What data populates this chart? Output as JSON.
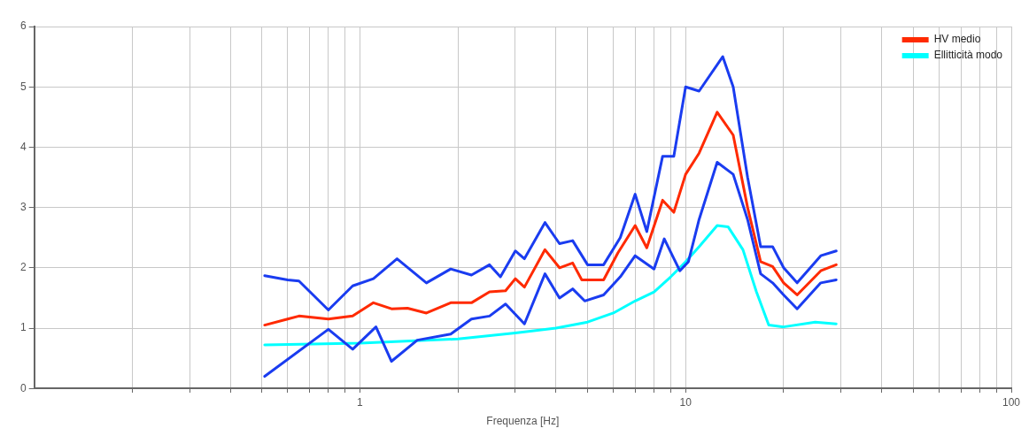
{
  "chart_data": {
    "type": "line",
    "xlabel": "Frequenza [Hz]",
    "xlim": [
      0.1,
      100
    ],
    "ylim": [
      0,
      6
    ],
    "xticks": [
      {
        "value": 0.2,
        "label": null
      },
      {
        "value": 0.3,
        "label": null
      },
      {
        "value": 0.4,
        "label": null
      },
      {
        "value": 0.5,
        "label": null
      },
      {
        "value": 0.6,
        "label": null
      },
      {
        "value": 0.7,
        "label": null
      },
      {
        "value": 0.8,
        "label": null
      },
      {
        "value": 0.9,
        "label": null
      },
      1,
      {
        "value": 2,
        "label": null
      },
      {
        "value": 3,
        "label": null
      },
      {
        "value": 4,
        "label": null
      },
      {
        "value": 5,
        "label": null
      },
      {
        "value": 6,
        "label": null
      },
      {
        "value": 7,
        "label": null
      },
      {
        "value": 8,
        "label": null
      },
      {
        "value": 9,
        "label": null
      },
      10,
      {
        "value": 20,
        "label": null
      },
      {
        "value": 30,
        "label": null
      },
      {
        "value": 40,
        "label": null
      },
      {
        "value": 50,
        "label": null
      },
      {
        "value": 60,
        "label": null
      },
      {
        "value": 70,
        "label": null
      },
      {
        "value": 80,
        "label": null
      },
      {
        "value": 90,
        "label": null
      },
      100
    ],
    "yticks": [
      0,
      1,
      2,
      3,
      4,
      5,
      6
    ],
    "log": "x",
    "grid": true,
    "legend": "top right",
    "marker": "none",
    "line_style": "solid",
    "series": [
      {
        "color": "#1a3cf0",
        "x": [
          0.51,
          0.6,
          0.65,
          0.8,
          0.95,
          1.1,
          1.3,
          1.6,
          1.9,
          2.2,
          2.5,
          2.7,
          3.0,
          3.2,
          3.7,
          4.1,
          4.5,
          5.0,
          5.6,
          6.3,
          7.0,
          7.6,
          8.5,
          9.2,
          10,
          11,
          13,
          14,
          15.5,
          17,
          18.5,
          20,
          22,
          26,
          29
        ],
        "values": [
          1.87,
          1.8,
          1.78,
          1.3,
          1.7,
          1.82,
          2.15,
          1.75,
          1.98,
          1.88,
          2.05,
          1.85,
          2.28,
          2.15,
          2.75,
          2.4,
          2.45,
          2.05,
          2.05,
          2.5,
          3.22,
          2.6,
          3.85,
          3.85,
          5.0,
          4.93,
          5.5,
          5.0,
          3.5,
          2.35,
          2.35,
          2.0,
          1.75,
          2.2,
          2.28
        ]
      },
      {
        "color": "#1a3cf0",
        "x": [
          0.51,
          0.8,
          0.95,
          1.12,
          1.25,
          1.5,
          1.9,
          2.2,
          2.5,
          2.8,
          3.2,
          3.7,
          4.1,
          4.5,
          4.9,
          5.6,
          6.3,
          7.0,
          8.0,
          8.6,
          9.6,
          10.2,
          11,
          12.5,
          14,
          15.5,
          17,
          18.5,
          20,
          22,
          26,
          29
        ],
        "values": [
          0.2,
          0.98,
          0.65,
          1.02,
          0.45,
          0.8,
          0.9,
          1.15,
          1.2,
          1.4,
          1.07,
          1.9,
          1.5,
          1.65,
          1.45,
          1.55,
          1.85,
          2.2,
          1.98,
          2.48,
          1.95,
          2.1,
          2.8,
          3.75,
          3.55,
          2.8,
          1.9,
          1.75,
          1.55,
          1.32,
          1.75,
          1.8
        ]
      },
      {
        "name": "HV medio",
        "color": "#ff2a00",
        "x": [
          0.51,
          0.6,
          0.65,
          0.8,
          0.95,
          1.1,
          1.25,
          1.4,
          1.6,
          1.9,
          2.2,
          2.5,
          2.8,
          3.0,
          3.2,
          3.7,
          4.1,
          4.5,
          4.8,
          5.6,
          6.2,
          7.0,
          7.6,
          8.5,
          9.2,
          10,
          11,
          12.5,
          14,
          15.5,
          17,
          18.5,
          20,
          22,
          26,
          29
        ],
        "values": [
          1.05,
          1.15,
          1.2,
          1.15,
          1.2,
          1.42,
          1.32,
          1.33,
          1.25,
          1.42,
          1.42,
          1.6,
          1.62,
          1.82,
          1.68,
          2.3,
          2.0,
          2.08,
          1.8,
          1.8,
          2.25,
          2.7,
          2.33,
          3.12,
          2.92,
          3.55,
          3.9,
          4.58,
          4.2,
          3.0,
          2.1,
          2.02,
          1.75,
          1.55,
          1.95,
          2.05
        ]
      },
      {
        "name": "Ellitticità modo",
        "color": "#00ffff",
        "x": [
          0.51,
          1,
          2,
          3,
          4,
          5,
          6,
          7,
          8,
          9,
          10,
          11,
          12.5,
          13.5,
          15,
          16.5,
          18,
          20,
          25,
          29
        ],
        "values": [
          0.72,
          0.75,
          0.82,
          0.92,
          1.0,
          1.1,
          1.25,
          1.45,
          1.6,
          1.85,
          2.1,
          2.35,
          2.7,
          2.68,
          2.3,
          1.6,
          1.05,
          1.02,
          1.1,
          1.07
        ]
      }
    ]
  }
}
